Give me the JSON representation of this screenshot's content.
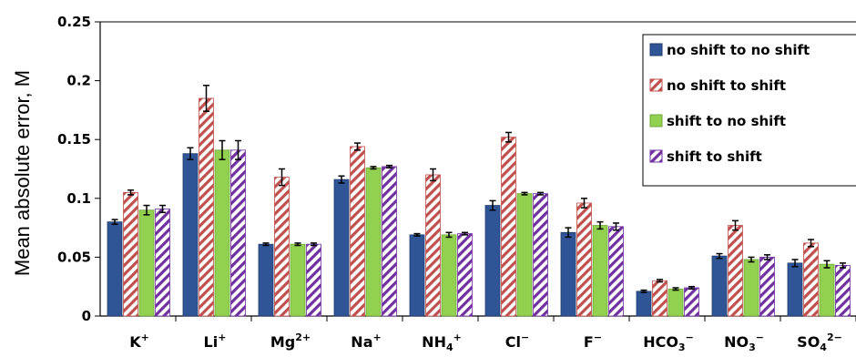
{
  "chart_data": {
    "type": "bar",
    "ylabel": "Mean absolute error, M",
    "ylim": [
      0,
      0.25
    ],
    "yticks": [
      "0",
      "0.05",
      "0.1",
      "0.15",
      "0.2",
      "0.25"
    ],
    "ytick_values": [
      0,
      0.05,
      0.1,
      0.15,
      0.2,
      0.25
    ],
    "categories": [
      {
        "base": "K",
        "sub": "",
        "sup": "+"
      },
      {
        "base": "Li",
        "sub": "",
        "sup": "+"
      },
      {
        "base": "Mg",
        "sub": "",
        "sup": "2+"
      },
      {
        "base": "Na",
        "sub": "",
        "sup": "+"
      },
      {
        "base": "NH",
        "sub": "4",
        "sup": "+"
      },
      {
        "base": "Cl",
        "sub": "",
        "sup": "−"
      },
      {
        "base": "F",
        "sub": "",
        "sup": "−"
      },
      {
        "base": "HCO",
        "sub": "3",
        "sup": "−"
      },
      {
        "base": "NO",
        "sub": "3",
        "sup": "−"
      },
      {
        "base": "SO",
        "sub": "4",
        "sup": "2−"
      }
    ],
    "series": [
      {
        "name": "no shift to no shift",
        "pattern": "solid",
        "color": "#2f5597",
        "values": [
          0.08,
          0.138,
          0.061,
          0.116,
          0.069,
          0.094,
          0.071,
          0.021,
          0.051,
          0.045
        ],
        "errors": [
          0.002,
          0.005,
          0.001,
          0.003,
          0.001,
          0.004,
          0.004,
          0.001,
          0.002,
          0.003
        ]
      },
      {
        "name": "no shift to shift",
        "pattern": "diagonal-stripe",
        "color": "#c0504d",
        "values": [
          0.105,
          0.185,
          0.118,
          0.144,
          0.12,
          0.152,
          0.096,
          0.03,
          0.077,
          0.062
        ],
        "errors": [
          0.002,
          0.011,
          0.007,
          0.003,
          0.005,
          0.004,
          0.004,
          0.001,
          0.004,
          0.003
        ]
      },
      {
        "name": "shift to no shift",
        "pattern": "solid",
        "color": "#92d050",
        "values": [
          0.09,
          0.141,
          0.061,
          0.126,
          0.069,
          0.104,
          0.077,
          0.023,
          0.048,
          0.044
        ],
        "errors": [
          0.004,
          0.008,
          0.001,
          0.001,
          0.002,
          0.001,
          0.003,
          0.001,
          0.002,
          0.003
        ]
      },
      {
        "name": "shift to shift",
        "pattern": "diagonal-stripe",
        "color": "#7030a0",
        "values": [
          0.091,
          0.141,
          0.061,
          0.127,
          0.07,
          0.104,
          0.076,
          0.024,
          0.05,
          0.043
        ],
        "errors": [
          0.003,
          0.008,
          0.001,
          0.001,
          0.001,
          0.001,
          0.003,
          0.001,
          0.002,
          0.002
        ]
      }
    ],
    "legend_position": "top-right",
    "grid": false
  }
}
